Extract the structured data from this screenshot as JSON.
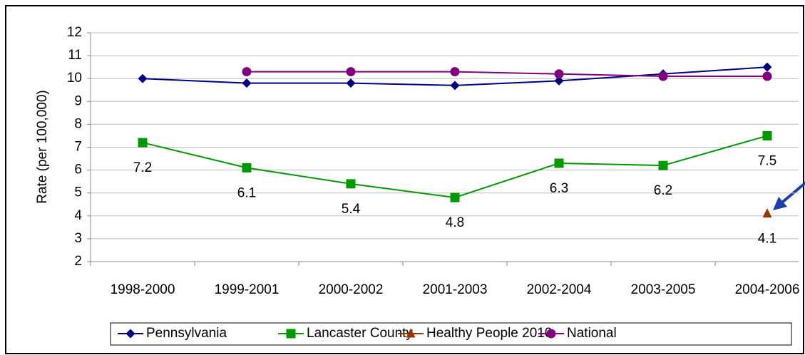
{
  "chart_data": {
    "type": "line",
    "y_label": "Rate (per 100,000)",
    "categories": [
      "1998-2000",
      "1999-2001",
      "2000-2002",
      "2001-2003",
      "2002-2004",
      "2003-2005",
      "2004-2006"
    ],
    "series": [
      {
        "name": "Pennsylvania",
        "color": "#000080",
        "marker": "diamond",
        "values": [
          10.0,
          9.8,
          9.8,
          9.7,
          9.9,
          10.2,
          10.5
        ]
      },
      {
        "name": "Lancaster County",
        "color": "#009900",
        "marker": "square",
        "values": [
          7.2,
          6.1,
          5.4,
          4.8,
          6.3,
          6.2,
          7.5
        ],
        "show_labels": true
      },
      {
        "name": "Healthy People 2010",
        "color": "#993300",
        "marker": "triangle",
        "values": [
          null,
          null,
          null,
          null,
          null,
          null,
          4.1
        ],
        "show_labels": true
      },
      {
        "name": "National",
        "color": "#800080",
        "marker": "circle",
        "values": [
          null,
          10.3,
          10.3,
          10.3,
          10.2,
          10.1,
          10.1
        ]
      }
    ],
    "ylim": [
      2,
      12
    ],
    "yticks": [
      2,
      3,
      4,
      5,
      6,
      7,
      8,
      9,
      10,
      11,
      12
    ],
    "grid": true,
    "legend": "bottom"
  }
}
